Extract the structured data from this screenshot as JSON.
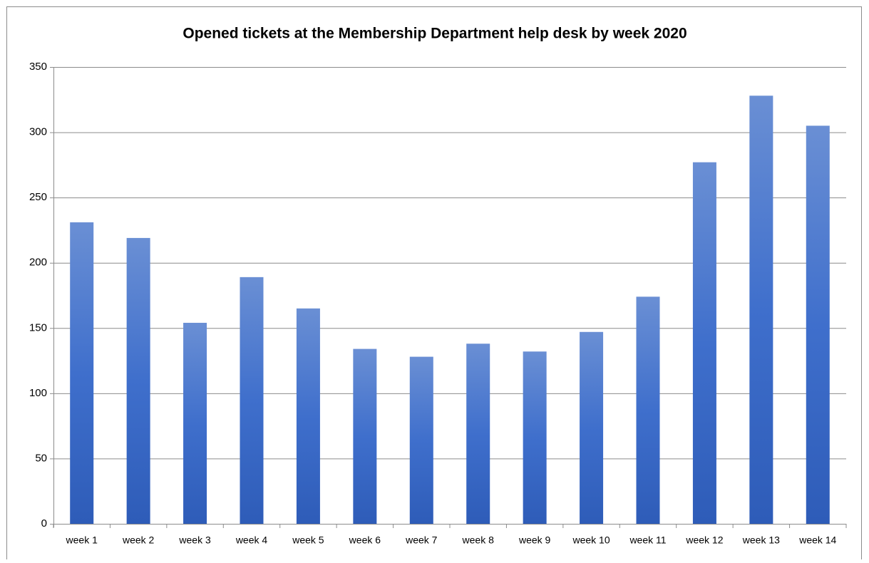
{
  "chart_data": {
    "type": "bar",
    "title": "Opened tickets at the Membership Department help desk by week 2020",
    "categories": [
      "week 1",
      "week 2",
      "week 3",
      "week 4",
      "week 5",
      "week 6",
      "week 7",
      "week 8",
      "week 9",
      "week 10",
      "week 11",
      "week 12",
      "week 13",
      "week 14"
    ],
    "values": [
      231,
      219,
      154,
      189,
      165,
      134,
      128,
      138,
      132,
      147,
      174,
      277,
      328,
      305
    ],
    "color": "#4472c4",
    "ylim": [
      0,
      350
    ],
    "yticks": [
      0,
      50,
      100,
      150,
      200,
      250,
      300,
      350
    ],
    "grid": true
  }
}
